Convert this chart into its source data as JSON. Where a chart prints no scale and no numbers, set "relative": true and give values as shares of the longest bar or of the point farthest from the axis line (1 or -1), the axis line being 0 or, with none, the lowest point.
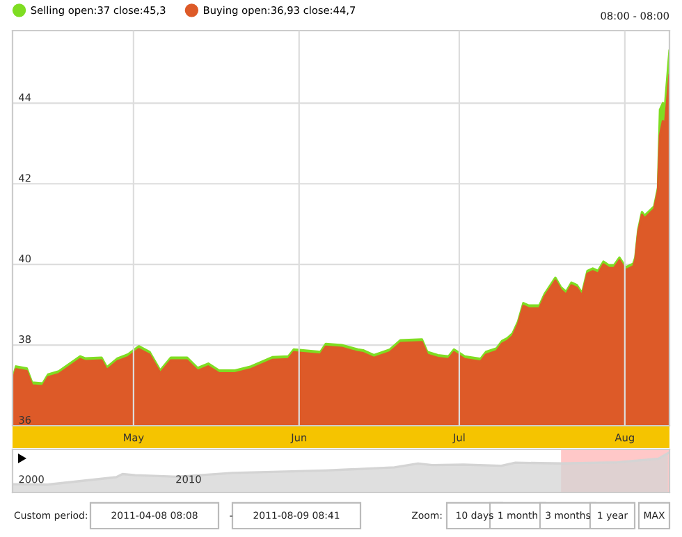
{
  "chart_data": [
    {
      "type": "area",
      "annotations": [
        "08:00 - 08:00"
      ],
      "x": [
        "2011-04-08T08:08",
        "2011-04-09",
        "2011-04-11",
        "2011-04-12",
        "2011-04-14",
        "2011-04-15",
        "2011-04-17",
        "2011-04-21",
        "2011-04-22",
        "2011-04-25",
        "2011-04-26",
        "2011-04-28",
        "2011-04-30",
        "2011-05-02",
        "2011-05-04",
        "2011-05-06",
        "2011-05-08",
        "2011-05-11",
        "2011-05-13",
        "2011-05-15",
        "2011-05-17",
        "2011-05-20",
        "2011-05-23",
        "2011-05-27",
        "2011-05-30",
        "2011-05-31",
        "2011-06-05",
        "2011-06-06",
        "2011-06-09",
        "2011-06-12",
        "2011-06-13",
        "2011-06-15",
        "2011-06-18",
        "2011-06-20",
        "2011-06-24",
        "2011-06-25",
        "2011-06-27",
        "2011-06-29",
        "2011-06-30",
        "2011-07-02",
        "2011-07-05",
        "2011-07-06",
        "2011-07-08",
        "2011-07-09",
        "2011-07-10",
        "2011-07-11",
        "2011-07-12",
        "2011-07-13",
        "2011-07-14",
        "2011-07-16",
        "2011-07-17",
        "2011-07-19",
        "2011-07-20",
        "2011-07-21",
        "2011-07-22",
        "2011-07-23",
        "2011-07-24",
        "2011-07-25",
        "2011-07-26",
        "2011-07-27",
        "2011-07-28",
        "2011-07-29",
        "2011-07-30",
        "2011-07-31",
        "2011-08-01T04:00",
        "2011-08-02T14:00",
        "2011-08-02T23:00",
        "2011-08-03T12:00",
        "2011-08-04T05:00",
        "2011-08-04T17:00",
        "2011-08-06T12:00",
        "2011-08-07T05:00",
        "2011-08-07T14:00",
        "2011-08-08T03:00",
        "2011-08-08T12:00",
        "2011-08-09T08:41"
      ],
      "series": [
        {
          "name": "Selling open:37 close:45,3",
          "color": "#7fdd22",
          "values": [
            37.17,
            37.47,
            37.42,
            37.07,
            37.05,
            37.27,
            37.35,
            37.72,
            37.67,
            37.69,
            37.45,
            37.67,
            37.77,
            37.97,
            37.83,
            37.37,
            37.69,
            37.69,
            37.43,
            37.54,
            37.37,
            37.37,
            37.47,
            37.7,
            37.72,
            37.89,
            37.83,
            38.03,
            38.0,
            37.89,
            37.87,
            37.75,
            37.89,
            38.12,
            38.14,
            37.83,
            37.75,
            37.72,
            37.89,
            37.72,
            37.66,
            37.83,
            37.92,
            38.1,
            38.17,
            38.29,
            38.58,
            39.04,
            38.98,
            38.98,
            39.27,
            39.67,
            39.44,
            39.32,
            39.55,
            39.49,
            39.29,
            39.84,
            39.9,
            39.84,
            40.07,
            39.98,
            39.98,
            40.17,
            39.93,
            40.02,
            40.17,
            40.86,
            41.3,
            41.21,
            41.44,
            41.9,
            43.84,
            44.0,
            43.9,
            45.3
          ]
        },
        {
          "name": "Buying open:36,93 close:44,7",
          "color": "#dd5a28",
          "values": [
            37.1,
            37.4,
            37.35,
            37.0,
            36.98,
            37.2,
            37.28,
            37.65,
            37.6,
            37.62,
            37.38,
            37.6,
            37.7,
            37.9,
            37.76,
            37.3,
            37.62,
            37.62,
            37.36,
            37.47,
            37.3,
            37.3,
            37.4,
            37.63,
            37.65,
            37.82,
            37.76,
            37.96,
            37.93,
            37.82,
            37.8,
            37.68,
            37.82,
            38.05,
            38.07,
            37.76,
            37.68,
            37.65,
            37.82,
            37.65,
            37.59,
            37.76,
            37.85,
            38.03,
            38.1,
            38.22,
            38.51,
            38.97,
            38.91,
            38.91,
            39.2,
            39.6,
            39.37,
            39.25,
            39.48,
            39.42,
            39.22,
            39.77,
            39.83,
            39.77,
            40.0,
            39.91,
            39.91,
            40.1,
            39.86,
            39.95,
            40.1,
            40.79,
            41.23,
            41.14,
            41.37,
            41.83,
            43.2,
            43.55,
            43.44,
            44.7
          ]
        }
      ],
      "xlim": [
        "2011-04-08T08:08",
        "2011-08-09T08:41"
      ],
      "xticks": [
        {
          "value": "2011-05-01",
          "label": "May"
        },
        {
          "value": "2011-06-01",
          "label": "Jun"
        },
        {
          "value": "2011-07-01",
          "label": "Jul"
        },
        {
          "value": "2011-08-01",
          "label": "Aug"
        }
      ],
      "ylim": [
        36,
        45.8
      ],
      "yticks": [
        36,
        38,
        40,
        42,
        44
      ],
      "grid": true,
      "legend": "top left"
    },
    {
      "type": "area",
      "relative": true,
      "tick_labels": "x",
      "x": [
        1998.8,
        2001.0,
        2005.4,
        2005.8,
        2006.6,
        2009.3,
        2012.8,
        2018.7,
        2023.1,
        2024.6,
        2025.5,
        2027.5,
        2029.9,
        2030.8,
        2033.7,
        2037.3,
        2039.9,
        2040.5
      ],
      "series": [
        {
          "color": "#d4d4d4",
          "values": [
            0.21,
            0.2,
            0.39,
            0.47,
            0.44,
            0.4,
            0.5,
            0.56,
            0.64,
            0.74,
            0.7,
            0.71,
            0.68,
            0.76,
            0.74,
            0.77,
            0.86,
            1.0
          ]
        }
      ],
      "xlim": [
        1998.8,
        2040.6
      ],
      "xticks": [
        2000,
        2010
      ],
      "bands": [
        {
          "axis": "x",
          "from": 2033.7,
          "to": 2040.6,
          "color": "#ffc8c8"
        }
      ]
    },
    {
      "type": "other",
      "annotations": [
        "Custom period:",
        "2011-04-08 08:08",
        "-",
        "2011-08-09 08:41",
        "Zoom:",
        "10 days",
        "1 month",
        "3 months",
        "1 year",
        "MAX"
      ]
    }
  ]
}
